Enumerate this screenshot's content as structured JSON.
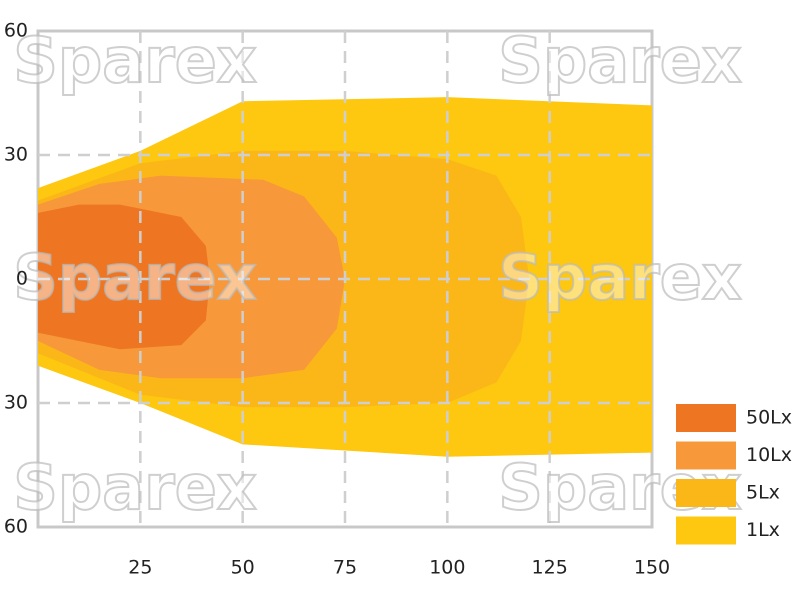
{
  "chart_data": {
    "type": "isolux",
    "watermark": "Sparex",
    "xlim": [
      0,
      150
    ],
    "ylim": [
      -60,
      60
    ],
    "xticks": [
      25,
      50,
      75,
      100,
      125,
      150
    ],
    "yticks": [
      {
        "value": 60,
        "label": "60"
      },
      30,
      0,
      {
        "value": -30,
        "label": "30"
      },
      {
        "value": -60,
        "label": "60"
      }
    ],
    "grid": true,
    "legend": "right",
    "series": [
      {
        "name": "50Lx",
        "color": "#ee7622",
        "x": [
          0,
          10,
          20,
          35,
          41,
          42,
          41,
          35,
          20,
          10,
          0
        ],
        "y": [
          16,
          18,
          18,
          15,
          8,
          0,
          -10,
          -16,
          -17,
          -15,
          -13
        ]
      },
      {
        "name": "10Lx",
        "color": "#f7983a",
        "x": [
          0,
          15,
          30,
          55,
          65,
          73,
          75,
          73,
          65,
          50,
          30,
          15,
          0
        ],
        "y": [
          18,
          23,
          25,
          24,
          20,
          10,
          0,
          -12,
          -22,
          -24,
          -24,
          -22,
          -15
        ]
      },
      {
        "name": "5Lx",
        "color": "#fbb718",
        "x": [
          0,
          25,
          50,
          75,
          100,
          112,
          118,
          120,
          118,
          112,
          100,
          75,
          50,
          25,
          0
        ],
        "y": [
          19,
          28,
          31,
          31,
          29,
          25,
          15,
          0,
          -15,
          -25,
          -30,
          -31,
          -31,
          -28,
          -18
        ]
      },
      {
        "name": "1Lx",
        "color": "#fdc80f",
        "x": [
          0,
          25,
          50,
          100,
          150,
          150,
          100,
          50,
          25,
          0
        ],
        "y": [
          22,
          31,
          43,
          44,
          42,
          -42,
          -43,
          -40,
          -30,
          -21
        ]
      }
    ]
  }
}
